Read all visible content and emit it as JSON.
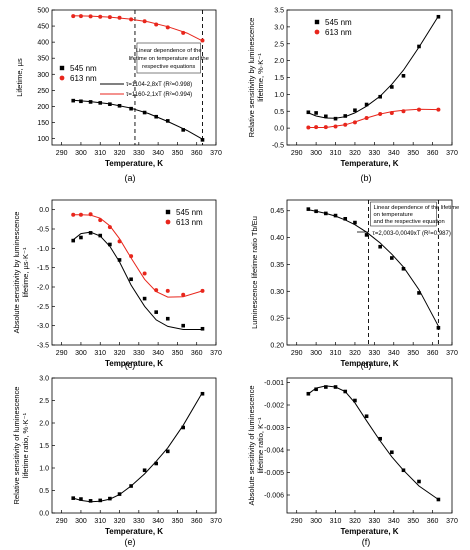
{
  "figure": {
    "colors": {
      "black": "#000000",
      "red": "#e8261c",
      "dash": "#000000"
    }
  },
  "chart_data": [
    {
      "panel_label": "(a)",
      "type": "scatter",
      "xlabel": "Temperature, K",
      "ylabel": "Lifetime, µs",
      "xlim": [
        285,
        370
      ],
      "ylim": [
        80,
        500
      ],
      "xticks": [
        290,
        300,
        310,
        320,
        330,
        340,
        350,
        360,
        370
      ],
      "yticks": [
        100,
        150,
        200,
        250,
        300,
        350,
        400,
        450,
        500
      ],
      "vlines": [
        328,
        363
      ],
      "legend": {
        "position": "middle-left",
        "entries": [
          "545 nm",
          "613 nm"
        ]
      },
      "box_note": "Linear dependence of the lifetime on temperature and the respective equations",
      "equations": [
        "τ=1104-2,8xT (R²=0.998)",
        "τ=1160-2,1xT (R²=0.994)"
      ],
      "series": [
        {
          "name": "545 nm",
          "color": "#000000",
          "x": [
            296,
            300,
            305,
            310,
            315,
            320,
            326,
            333,
            339,
            345,
            353,
            363
          ],
          "y": [
            218,
            216,
            214,
            211,
            207,
            202,
            193,
            181,
            168,
            155,
            127,
            96
          ],
          "fit_x": [
            296,
            305,
            315,
            325,
            335,
            345,
            355,
            363
          ],
          "fit_y": [
            219,
            215,
            208,
            196,
            178,
            153,
            125,
            98
          ]
        },
        {
          "name": "613 nm",
          "color": "#e8261c",
          "x": [
            296,
            300,
            305,
            310,
            315,
            320,
            326,
            333,
            339,
            345,
            353,
            363
          ],
          "y": [
            481,
            481,
            480,
            479,
            478,
            476,
            471,
            465,
            455,
            446,
            429,
            405
          ],
          "fit_x": [
            296,
            305,
            315,
            325,
            335,
            345,
            355,
            363
          ],
          "fit_y": [
            482,
            481,
            478,
            472,
            463,
            448,
            428,
            404
          ]
        }
      ]
    },
    {
      "panel_label": "(b)",
      "type": "scatter",
      "xlabel": "Temperature, K",
      "ylabel": "Relative sensitivity by luminescence lifetime, %·K⁻¹",
      "xlim": [
        285,
        370
      ],
      "ylim": [
        -0.5,
        3.5
      ],
      "xticks": [
        290,
        300,
        310,
        320,
        330,
        340,
        350,
        360,
        370
      ],
      "yticks": [
        -0.5,
        0.0,
        0.5,
        1.0,
        1.5,
        2.0,
        2.5,
        3.0,
        3.5
      ],
      "legend": {
        "position": "top-left",
        "entries": [
          "545 nm",
          "613 nm"
        ]
      },
      "series": [
        {
          "name": "545 nm",
          "color": "#000000",
          "x": [
            296,
            300,
            305,
            310,
            315,
            320,
            326,
            333,
            339,
            345,
            353,
            363
          ],
          "y": [
            0.47,
            0.45,
            0.35,
            0.28,
            0.36,
            0.53,
            0.7,
            0.93,
            1.22,
            1.55,
            2.42,
            3.3
          ],
          "fit_x": [
            296,
            300,
            305,
            310,
            315,
            320,
            326,
            333,
            339,
            345,
            353,
            363
          ],
          "fit_y": [
            0.45,
            0.36,
            0.3,
            0.29,
            0.34,
            0.45,
            0.65,
            0.95,
            1.3,
            1.72,
            2.4,
            3.32
          ]
        },
        {
          "name": "613 nm",
          "color": "#e8261c",
          "x": [
            296,
            300,
            305,
            310,
            315,
            320,
            326,
            333,
            339,
            345,
            353,
            363
          ],
          "y": [
            0.02,
            0.03,
            0.03,
            0.05,
            0.1,
            0.17,
            0.3,
            0.42,
            0.45,
            0.5,
            0.55,
            0.55
          ],
          "fit_x": [
            296,
            305,
            315,
            320,
            326,
            333,
            339,
            345,
            353,
            363
          ],
          "fit_y": [
            0.02,
            0.02,
            0.1,
            0.18,
            0.3,
            0.42,
            0.49,
            0.53,
            0.56,
            0.55
          ]
        }
      ]
    },
    {
      "panel_label": "(c)",
      "type": "scatter",
      "xlabel": "Temperature, K",
      "ylabel": "Absolute sensitivity by luminescence lifetime, µs·K⁻¹",
      "xlim": [
        285,
        370
      ],
      "ylim": [
        -3.5,
        0.25
      ],
      "xticks": [
        290,
        300,
        310,
        320,
        330,
        340,
        350,
        360,
        370
      ],
      "yticks": [
        -3.5,
        -3.0,
        -2.5,
        -2.0,
        -1.5,
        -1.0,
        -0.5,
        0.0
      ],
      "legend": {
        "position": "top-right",
        "entries": [
          "545 nm",
          "613 nm"
        ]
      },
      "series": [
        {
          "name": "545 nm",
          "color": "#000000",
          "x": [
            296,
            300,
            305,
            310,
            315,
            320,
            326,
            333,
            339,
            345,
            353,
            363
          ],
          "y": [
            -0.8,
            -0.72,
            -0.6,
            -0.67,
            -0.9,
            -1.3,
            -1.8,
            -2.3,
            -2.65,
            -2.82,
            -3.0,
            -3.08
          ],
          "fit_x": [
            296,
            300,
            305,
            310,
            315,
            320,
            326,
            333,
            339,
            345,
            353,
            363
          ],
          "fit_y": [
            -0.78,
            -0.62,
            -0.58,
            -0.68,
            -0.95,
            -1.35,
            -1.95,
            -2.5,
            -2.85,
            -3.02,
            -3.1,
            -3.1
          ]
        },
        {
          "name": "613 nm",
          "color": "#e8261c",
          "x": [
            296,
            300,
            305,
            310,
            315,
            320,
            326,
            333,
            339,
            345,
            353,
            363
          ],
          "y": [
            -0.13,
            -0.13,
            -0.12,
            -0.27,
            -0.45,
            -0.82,
            -1.2,
            -1.65,
            -2.08,
            -2.1,
            -2.2,
            -2.1
          ],
          "fit_x": [
            296,
            300,
            305,
            310,
            315,
            320,
            326,
            333,
            339,
            345,
            353,
            363
          ],
          "fit_y": [
            -0.13,
            -0.13,
            -0.14,
            -0.22,
            -0.42,
            -0.75,
            -1.25,
            -1.8,
            -2.12,
            -2.26,
            -2.25,
            -2.1
          ]
        }
      ]
    },
    {
      "panel_label": "(d)",
      "type": "scatter",
      "xlabel": "Temperature, K",
      "ylabel": "Luminescence lifetime ratio Tb/Eu",
      "xlim": [
        285,
        370
      ],
      "ylim": [
        0.2,
        0.47
      ],
      "xticks": [
        290,
        300,
        310,
        320,
        330,
        340,
        350,
        360,
        370
      ],
      "yticks": [
        0.2,
        0.25,
        0.3,
        0.35,
        0.4,
        0.45
      ],
      "vlines": [
        327,
        363
      ],
      "box_note": "Linear dependence of the lifetime on temperature and the respective equation",
      "equations": [
        "τ=2,003-0,0049xT (R²=0.987)"
      ],
      "series": [
        {
          "name": "",
          "color": "#000000",
          "x": [
            296,
            300,
            305,
            310,
            315,
            320,
            326,
            333,
            339,
            345,
            353,
            363
          ],
          "y": [
            0.453,
            0.449,
            0.445,
            0.441,
            0.435,
            0.428,
            0.405,
            0.383,
            0.362,
            0.342,
            0.297,
            0.232
          ],
          "fit_x": [
            296,
            300,
            305,
            310,
            315,
            320,
            326,
            333,
            339,
            345,
            353,
            363
          ],
          "fit_y": [
            0.452,
            0.449,
            0.445,
            0.44,
            0.433,
            0.424,
            0.41,
            0.39,
            0.369,
            0.345,
            0.303,
            0.235
          ]
        }
      ]
    },
    {
      "panel_label": "(e)",
      "type": "scatter",
      "xlabel": "Temperature, K",
      "ylabel": "Relative sensitivity of luminescence lifetime ratio, %·K⁻¹",
      "xlim": [
        285,
        370
      ],
      "ylim": [
        0.0,
        3.0
      ],
      "xticks": [
        290,
        300,
        310,
        320,
        330,
        340,
        350,
        360,
        370
      ],
      "yticks": [
        0.0,
        0.5,
        1.0,
        1.5,
        2.0,
        2.5,
        3.0
      ],
      "series": [
        {
          "name": "",
          "color": "#000000",
          "x": [
            296,
            300,
            305,
            310,
            315,
            320,
            326,
            333,
            339,
            345,
            353,
            363
          ],
          "y": [
            0.33,
            0.31,
            0.27,
            0.28,
            0.32,
            0.42,
            0.6,
            0.95,
            1.1,
            1.37,
            1.9,
            2.65
          ],
          "fit_x": [
            296,
            300,
            305,
            310,
            315,
            320,
            326,
            333,
            339,
            345,
            353,
            363
          ],
          "fit_y": [
            0.33,
            0.28,
            0.25,
            0.26,
            0.31,
            0.41,
            0.6,
            0.87,
            1.15,
            1.45,
            1.95,
            2.68
          ]
        }
      ]
    },
    {
      "panel_label": "(f)",
      "type": "scatter",
      "xlabel": "Temperature, K",
      "ylabel": "Absolute sensitivity of luminescence lifetime ratio, K⁻¹",
      "xlim": [
        285,
        370
      ],
      "ylim": [
        -0.0068,
        -0.0008
      ],
      "xticks": [
        290,
        300,
        310,
        320,
        330,
        340,
        350,
        360,
        370
      ],
      "yticks": [
        -0.006,
        -0.005,
        -0.004,
        -0.003,
        -0.002,
        -0.001
      ],
      "series": [
        {
          "name": "",
          "color": "#000000",
          "x": [
            296,
            300,
            305,
            310,
            315,
            320,
            326,
            333,
            339,
            345,
            353,
            363
          ],
          "y": [
            -0.0015,
            -0.0013,
            -0.0012,
            -0.0012,
            -0.0014,
            -0.0018,
            -0.0025,
            -0.0035,
            -0.0041,
            -0.0049,
            -0.0054,
            -0.0062
          ],
          "fit_x": [
            296,
            300,
            305,
            310,
            315,
            320,
            326,
            333,
            339,
            345,
            353,
            363
          ],
          "fit_y": [
            -0.0015,
            -0.00125,
            -0.00115,
            -0.0012,
            -0.0014,
            -0.0019,
            -0.0027,
            -0.0036,
            -0.0043,
            -0.0049,
            -0.0056,
            -0.0062
          ]
        }
      ]
    }
  ]
}
